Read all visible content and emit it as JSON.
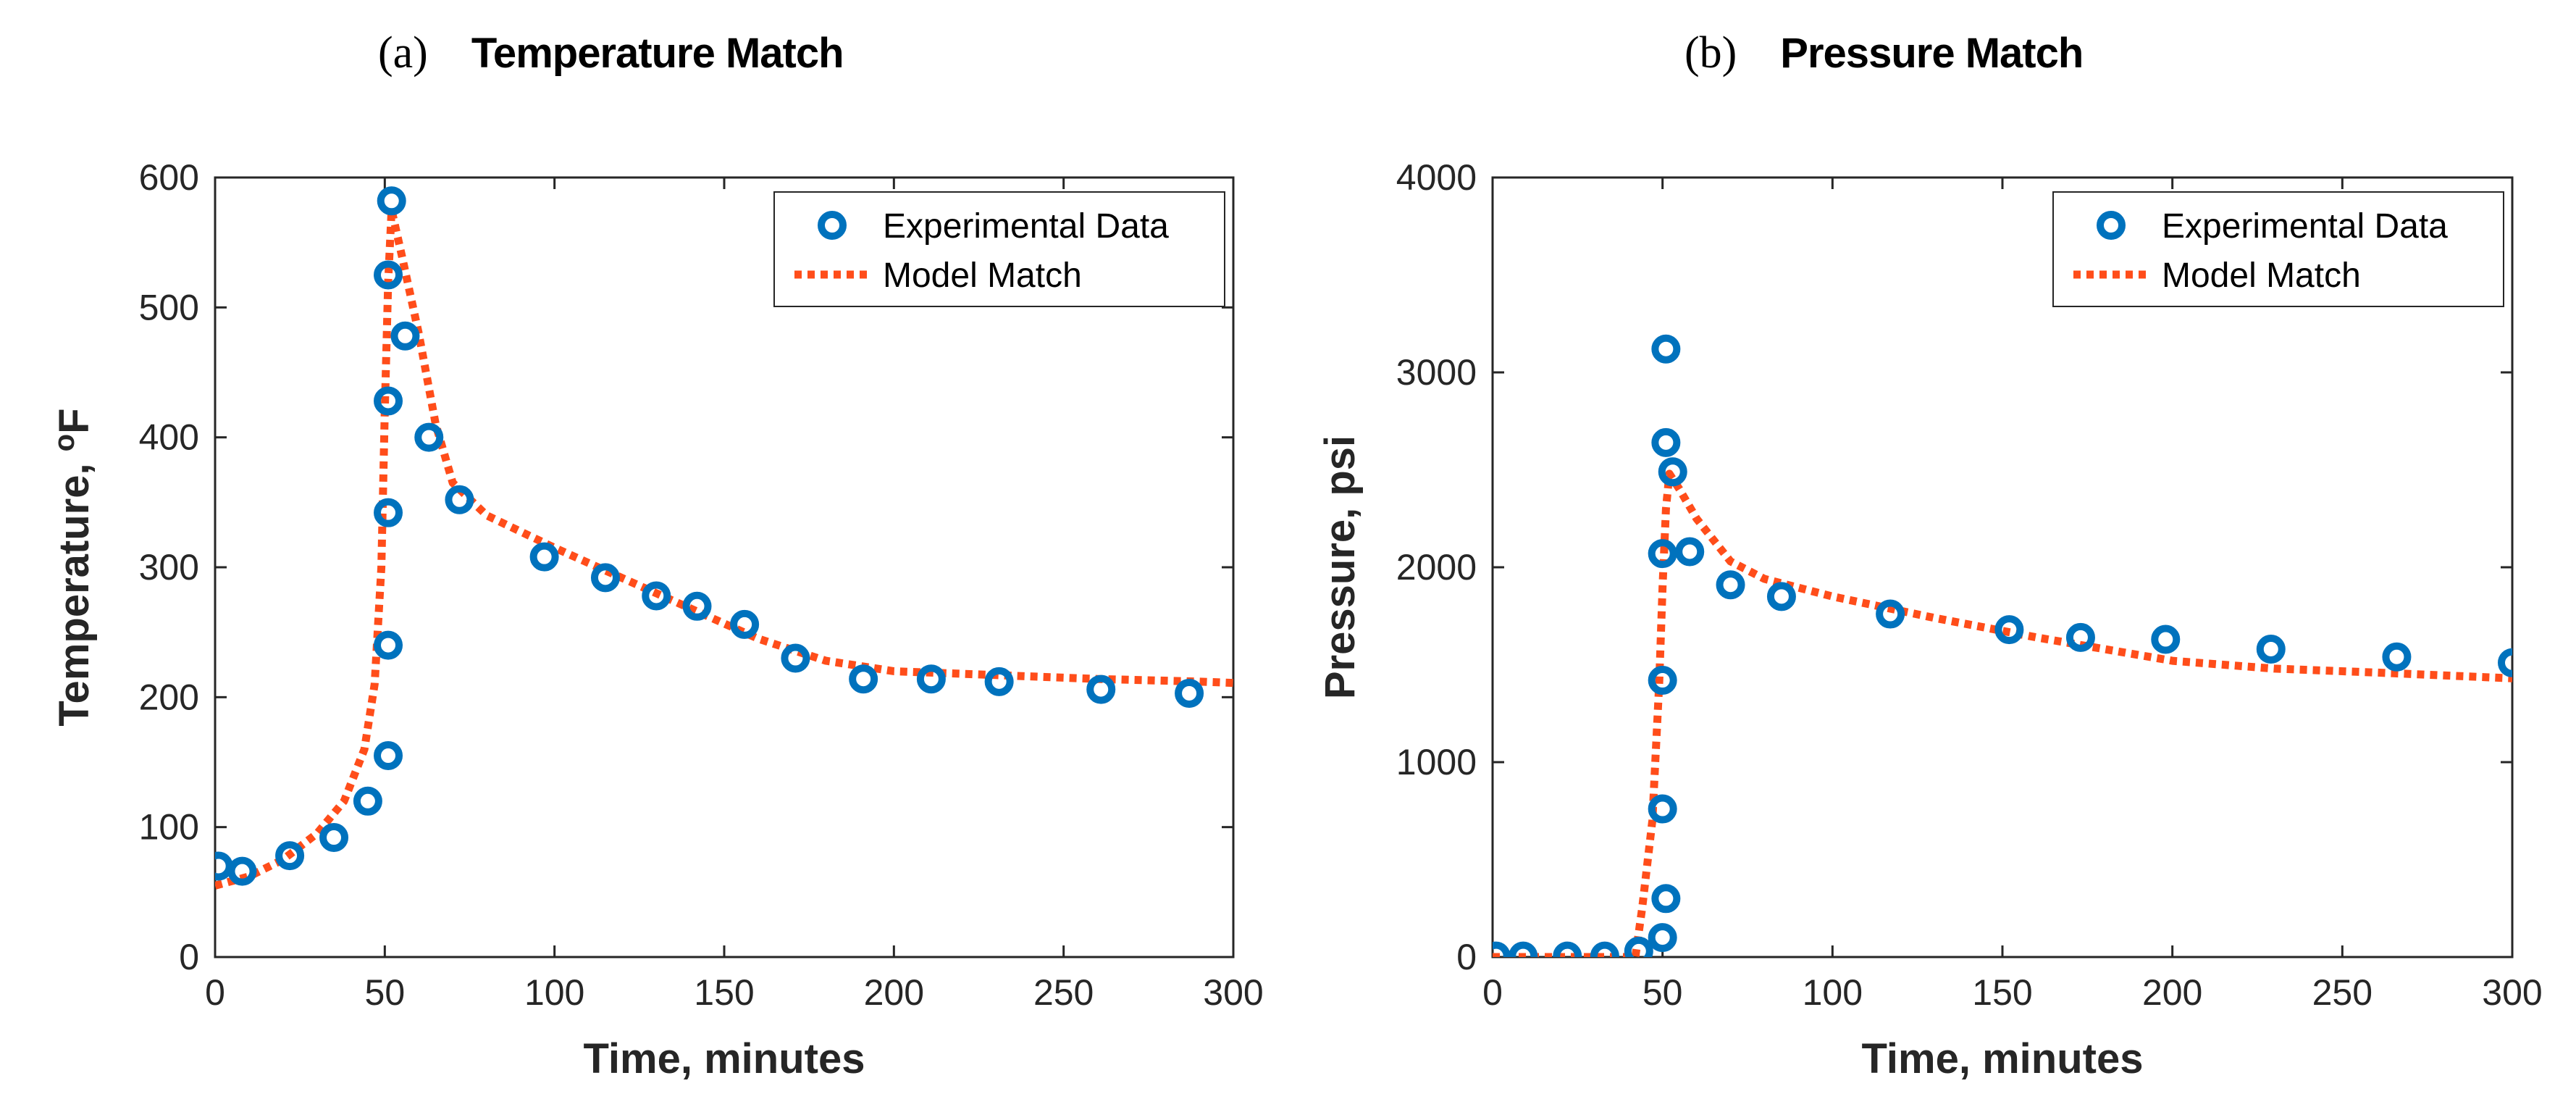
{
  "panels": [
    {
      "tag": "(a)",
      "title": "Temperature Match"
    },
    {
      "tag": "(b)",
      "title": "Pressure Match"
    }
  ],
  "colors": {
    "experimental": "#0072BD",
    "model": "#FF4D1A",
    "axis": "#262626"
  },
  "chart_data": [
    {
      "type": "scatter+line",
      "title": "Temperature Match",
      "xlabel": "Time, minutes",
      "ylabel_main": "Temperature, ",
      "ylabel_sup": "o",
      "ylabel_unit": "F",
      "xlim": [
        0,
        300
      ],
      "ylim": [
        0,
        600
      ],
      "xticks": [
        0,
        50,
        100,
        150,
        200,
        250,
        300
      ],
      "yticks": [
        0,
        100,
        200,
        300,
        400,
        500,
        600
      ],
      "legend": [
        "Experimental Data",
        "Model Match"
      ],
      "legend_position": "top-right",
      "series": [
        {
          "name": "Experimental Data",
          "style": "markers",
          "points": [
            [
              1,
              70
            ],
            [
              8,
              66
            ],
            [
              22,
              78
            ],
            [
              35,
              92
            ],
            [
              45,
              120
            ],
            [
              51,
              155
            ],
            [
              51,
              240
            ],
            [
              51,
              342
            ],
            [
              51,
              428
            ],
            [
              51,
              525
            ],
            [
              52,
              582
            ],
            [
              56,
              478
            ],
            [
              63,
              400
            ],
            [
              72,
              352
            ],
            [
              97,
              308
            ],
            [
              115,
              292
            ],
            [
              130,
              278
            ],
            [
              142,
              270
            ],
            [
              156,
              256
            ],
            [
              171,
              230
            ],
            [
              191,
              214
            ],
            [
              211,
              214
            ],
            [
              231,
              212
            ],
            [
              261,
              206
            ],
            [
              287,
              203
            ]
          ]
        },
        {
          "name": "Model Match",
          "style": "dotted-line",
          "points": [
            [
              0,
              55
            ],
            [
              10,
              62
            ],
            [
              20,
              75
            ],
            [
              30,
              95
            ],
            [
              38,
              120
            ],
            [
              44,
              160
            ],
            [
              47,
              210
            ],
            [
              49,
              300
            ],
            [
              50,
              420
            ],
            [
              51,
              520
            ],
            [
              52,
              575
            ],
            [
              55,
              540
            ],
            [
              60,
              480
            ],
            [
              65,
              410
            ],
            [
              70,
              365
            ],
            [
              80,
              340
            ],
            [
              100,
              315
            ],
            [
              130,
              280
            ],
            [
              160,
              245
            ],
            [
              180,
              228
            ],
            [
              200,
              220
            ],
            [
              230,
              217
            ],
            [
              260,
              214
            ],
            [
              290,
              212
            ],
            [
              300,
              211
            ]
          ]
        }
      ]
    },
    {
      "type": "scatter+line",
      "title": "Pressure Match",
      "xlabel": "Time, minutes",
      "ylabel_main": "Pressure, psi",
      "ylabel_sup": "",
      "ylabel_unit": "",
      "xlim": [
        0,
        300
      ],
      "ylim": [
        0,
        4000
      ],
      "xticks": [
        0,
        50,
        100,
        150,
        200,
        250,
        300
      ],
      "yticks": [
        0,
        1000,
        2000,
        3000,
        4000
      ],
      "legend": [
        "Experimental Data",
        "Model Match"
      ],
      "legend_position": "top-right",
      "series": [
        {
          "name": "Experimental Data",
          "style": "markers",
          "points": [
            [
              1,
              5
            ],
            [
              9,
              5
            ],
            [
              22,
              5
            ],
            [
              33,
              5
            ],
            [
              43,
              30
            ],
            [
              50,
              100
            ],
            [
              51,
              300
            ],
            [
              50,
              760
            ],
            [
              50,
              1420
            ],
            [
              50,
              2070
            ],
            [
              51,
              2640
            ],
            [
              51,
              3120
            ],
            [
              53,
              2490
            ],
            [
              58,
              2080
            ],
            [
              70,
              1910
            ],
            [
              85,
              1850
            ],
            [
              117,
              1760
            ],
            [
              152,
              1680
            ],
            [
              173,
              1640
            ],
            [
              198,
              1630
            ],
            [
              229,
              1580
            ],
            [
              266,
              1540
            ],
            [
              300,
              1510
            ]
          ]
        },
        {
          "name": "Model Match",
          "style": "dotted-line",
          "points": [
            [
              0,
              0
            ],
            [
              42,
              0
            ],
            [
              44,
              250
            ],
            [
              47,
              700
            ],
            [
              49,
              1400
            ],
            [
              50,
              1900
            ],
            [
              51,
              2300
            ],
            [
              52,
              2480
            ],
            [
              55,
              2400
            ],
            [
              60,
              2250
            ],
            [
              70,
              2030
            ],
            [
              80,
              1940
            ],
            [
              100,
              1850
            ],
            [
              130,
              1740
            ],
            [
              160,
              1640
            ],
            [
              200,
              1520
            ],
            [
              230,
              1480
            ],
            [
              260,
              1460
            ],
            [
              300,
              1430
            ]
          ]
        }
      ]
    }
  ]
}
